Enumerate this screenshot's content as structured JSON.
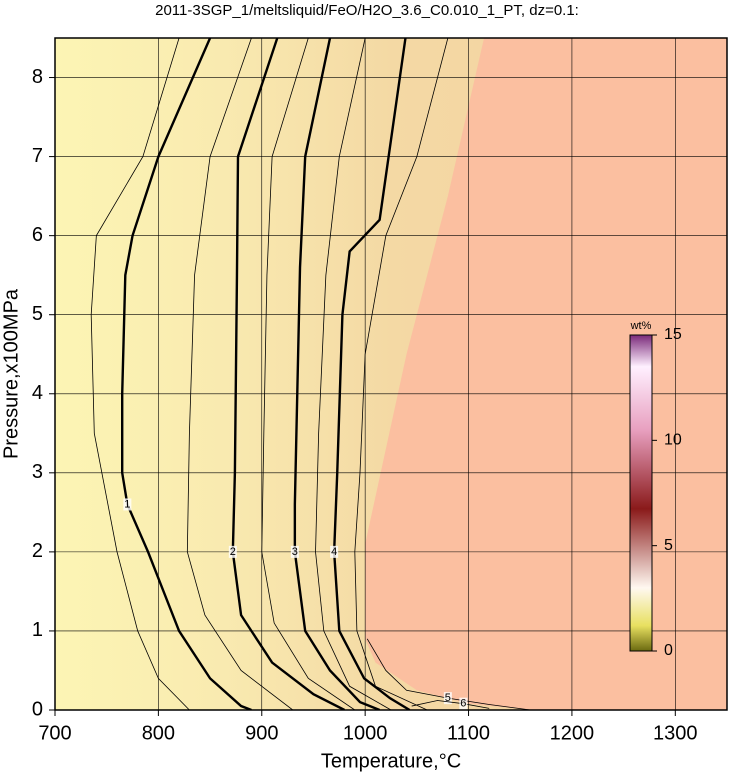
{
  "chart_data": {
    "type": "contour",
    "title": "2011-3SGP_1/meltsliquid/FeO/H2O_3.6_C0.010_1_PT, dz=0.1:",
    "x_label": "Temperature,°C",
    "y_label": "Pressure,x100MPa",
    "xlim": [
      700,
      1350
    ],
    "ylim": [
      0,
      8.5
    ],
    "xticks": [
      700,
      800,
      900,
      1000,
      1100,
      1200,
      1300
    ],
    "yticks": [
      0,
      1,
      2,
      3,
      4,
      5,
      6,
      7,
      8
    ],
    "grid": true,
    "region": {
      "color": "#fbbfa0",
      "x": [
        1115,
        1350,
        1350,
        1160,
        1100,
        1050,
        1010,
        1000,
        1000,
        1040,
        1080
      ],
      "y": [
        8.5,
        8.5,
        0,
        0,
        0.08,
        0.25,
        0.6,
        0.9,
        2.1,
        4.5,
        6.5
      ]
    },
    "contours": [
      {
        "level": 1,
        "bold": true,
        "x": [
          850,
          800,
          775,
          768,
          765,
          765,
          770,
          790,
          805,
          820,
          850,
          880,
          890
        ],
        "y": [
          8.5,
          7,
          6,
          5.5,
          4,
          3,
          2.6,
          2,
          1.5,
          1,
          0.4,
          0.05,
          0
        ]
      },
      {
        "level": 2,
        "bold": true,
        "x": [
          915,
          877,
          876,
          874,
          872,
          880,
          910,
          950,
          980
        ],
        "y": [
          8.5,
          7,
          5.5,
          3,
          2,
          1.2,
          0.6,
          0.2,
          0
        ]
      },
      {
        "level": 3,
        "bold": true,
        "x": [
          966,
          942,
          937,
          932,
          932,
          942,
          966,
          995,
          1014
        ],
        "y": [
          8.5,
          7,
          5.6,
          2.6,
          2,
          1,
          0.5,
          0.1,
          0
        ]
      },
      {
        "level": 4,
        "bold": true,
        "x": [
          1039,
          1014,
          985,
          978,
          973,
          970,
          975,
          999,
          1024,
          1043
        ],
        "y": [
          8.5,
          6.2,
          5.8,
          5,
          3,
          2,
          1,
          0.4,
          0.15,
          0
        ]
      },
      {
        "level": 5,
        "bold": false,
        "x": [
          1002,
          1020,
          1040,
          1080,
          1120,
          1160
        ],
        "y": [
          0.9,
          0.5,
          0.25,
          0.15,
          0.07,
          0
        ]
      },
      {
        "level": 6,
        "bold": false,
        "x": [
          1045,
          1070,
          1095,
          1120
        ],
        "y": [
          0.05,
          0.12,
          0.08,
          0.02
        ]
      },
      {
        "bold": false,
        "x": [
          820,
          785,
          740,
          735,
          738,
          760,
          780,
          800,
          830
        ],
        "y": [
          8.5,
          7,
          6,
          5,
          3.5,
          2,
          1,
          0.4,
          0
        ]
      },
      {
        "bold": false,
        "x": [
          890,
          850,
          835,
          830,
          828,
          845,
          880,
          930
        ],
        "y": [
          8.5,
          7,
          5.5,
          3.5,
          2,
          1.2,
          0.5,
          0
        ]
      },
      {
        "bold": false,
        "x": [
          945,
          910,
          905,
          902,
          900,
          912,
          945,
          990
        ],
        "y": [
          8.5,
          7,
          5.5,
          3.5,
          2,
          1.1,
          0.4,
          0
        ]
      },
      {
        "bold": false,
        "x": [
          1000,
          975,
          962,
          955,
          952,
          960,
          985,
          1025
        ],
        "y": [
          8.5,
          7,
          5.5,
          3.5,
          2,
          1,
          0.3,
          0
        ]
      },
      {
        "bold": false,
        "x": [
          1080,
          1050,
          1020,
          1000,
          995,
          990,
          992,
          1010,
          1060
        ],
        "y": [
          8.5,
          7,
          6,
          4.5,
          3,
          2,
          1,
          0.3,
          0
        ]
      }
    ],
    "colorbar": {
      "label": "wt%",
      "lim": [
        0,
        15
      ],
      "ticks": [
        0,
        5,
        10,
        15
      ]
    }
  }
}
